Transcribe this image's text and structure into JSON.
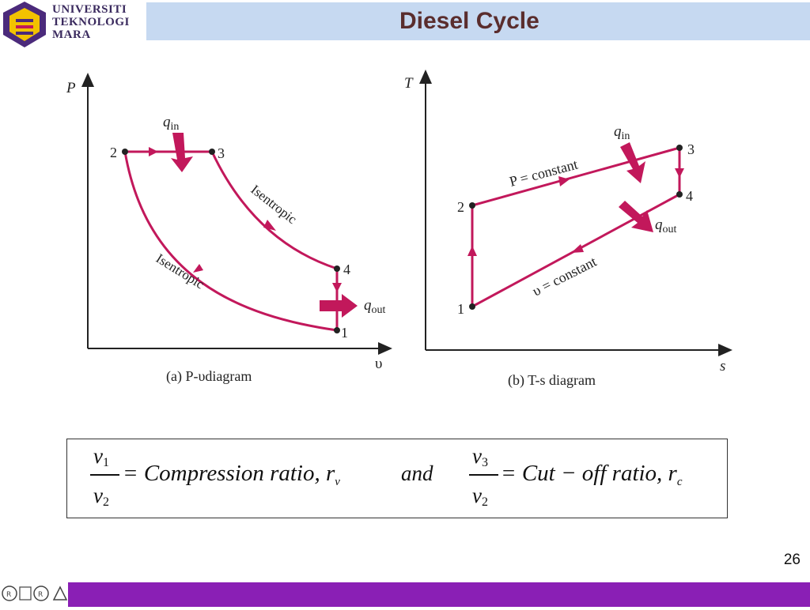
{
  "logo": {
    "line1": "UNIVERSITI",
    "line2": "TEKNOLOGI",
    "line3": "MARA"
  },
  "title": "Diesel Cycle",
  "pv_diagram": {
    "y_axis": "P",
    "x_axis": "υ",
    "caption": "(a) P-υdiagram",
    "q_in": "q",
    "q_in_sub": "in",
    "q_out": "q",
    "q_out_sub": "out",
    "points": [
      "1",
      "2",
      "3",
      "4"
    ],
    "label_upper": "Isentropic",
    "label_lower": "Isentropic"
  },
  "ts_diagram": {
    "y_axis": "T",
    "x_axis": "s",
    "caption": "(b) T-s diagram",
    "q_in": "q",
    "q_in_sub": "in",
    "q_out": "q",
    "q_out_sub": "out",
    "points": [
      "1",
      "2",
      "3",
      "4"
    ],
    "p_const": "P = constant",
    "v_const": "υ = constant"
  },
  "formula": {
    "num1": "v",
    "num1_sub": "1",
    "den1": "v",
    "den1_sub": "2",
    "eq1": "= Compression ratio, r",
    "eq1_sub": "v",
    "and": "and",
    "num2": "v",
    "num2_sub": "3",
    "den2": "v",
    "den2_sub": "2",
    "eq2": "= Cut − off  ratio, r",
    "eq2_sub": "c"
  },
  "page_number": "26",
  "colors": {
    "curve": "#c2185b",
    "title_bar": "#c6d9f1",
    "footer": "#8a1fb5"
  }
}
